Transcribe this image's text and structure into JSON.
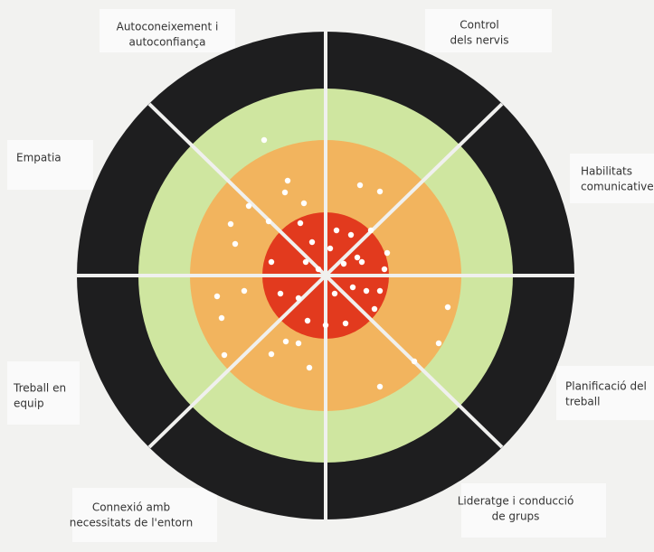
{
  "labels": [
    {
      "lines": [
        "Autoconeixement i",
        "autoconfiança"
      ]
    },
    {
      "lines": [
        "Control",
        "dels nervis"
      ]
    },
    {
      "lines": [
        "Empatia"
      ]
    },
    {
      "lines": [
        "Habilitats",
        "comunicatives"
      ]
    },
    {
      "lines": [
        "Treball en",
        "equip"
      ]
    },
    {
      "lines": [
        "Planificació del",
        "treball"
      ]
    },
    {
      "lines": [
        "Connexió  amb",
        "necessitats de l'entorn"
      ]
    },
    {
      "lines": [
        "Lideratge i conducció",
        "de grups"
      ]
    }
  ]
}
